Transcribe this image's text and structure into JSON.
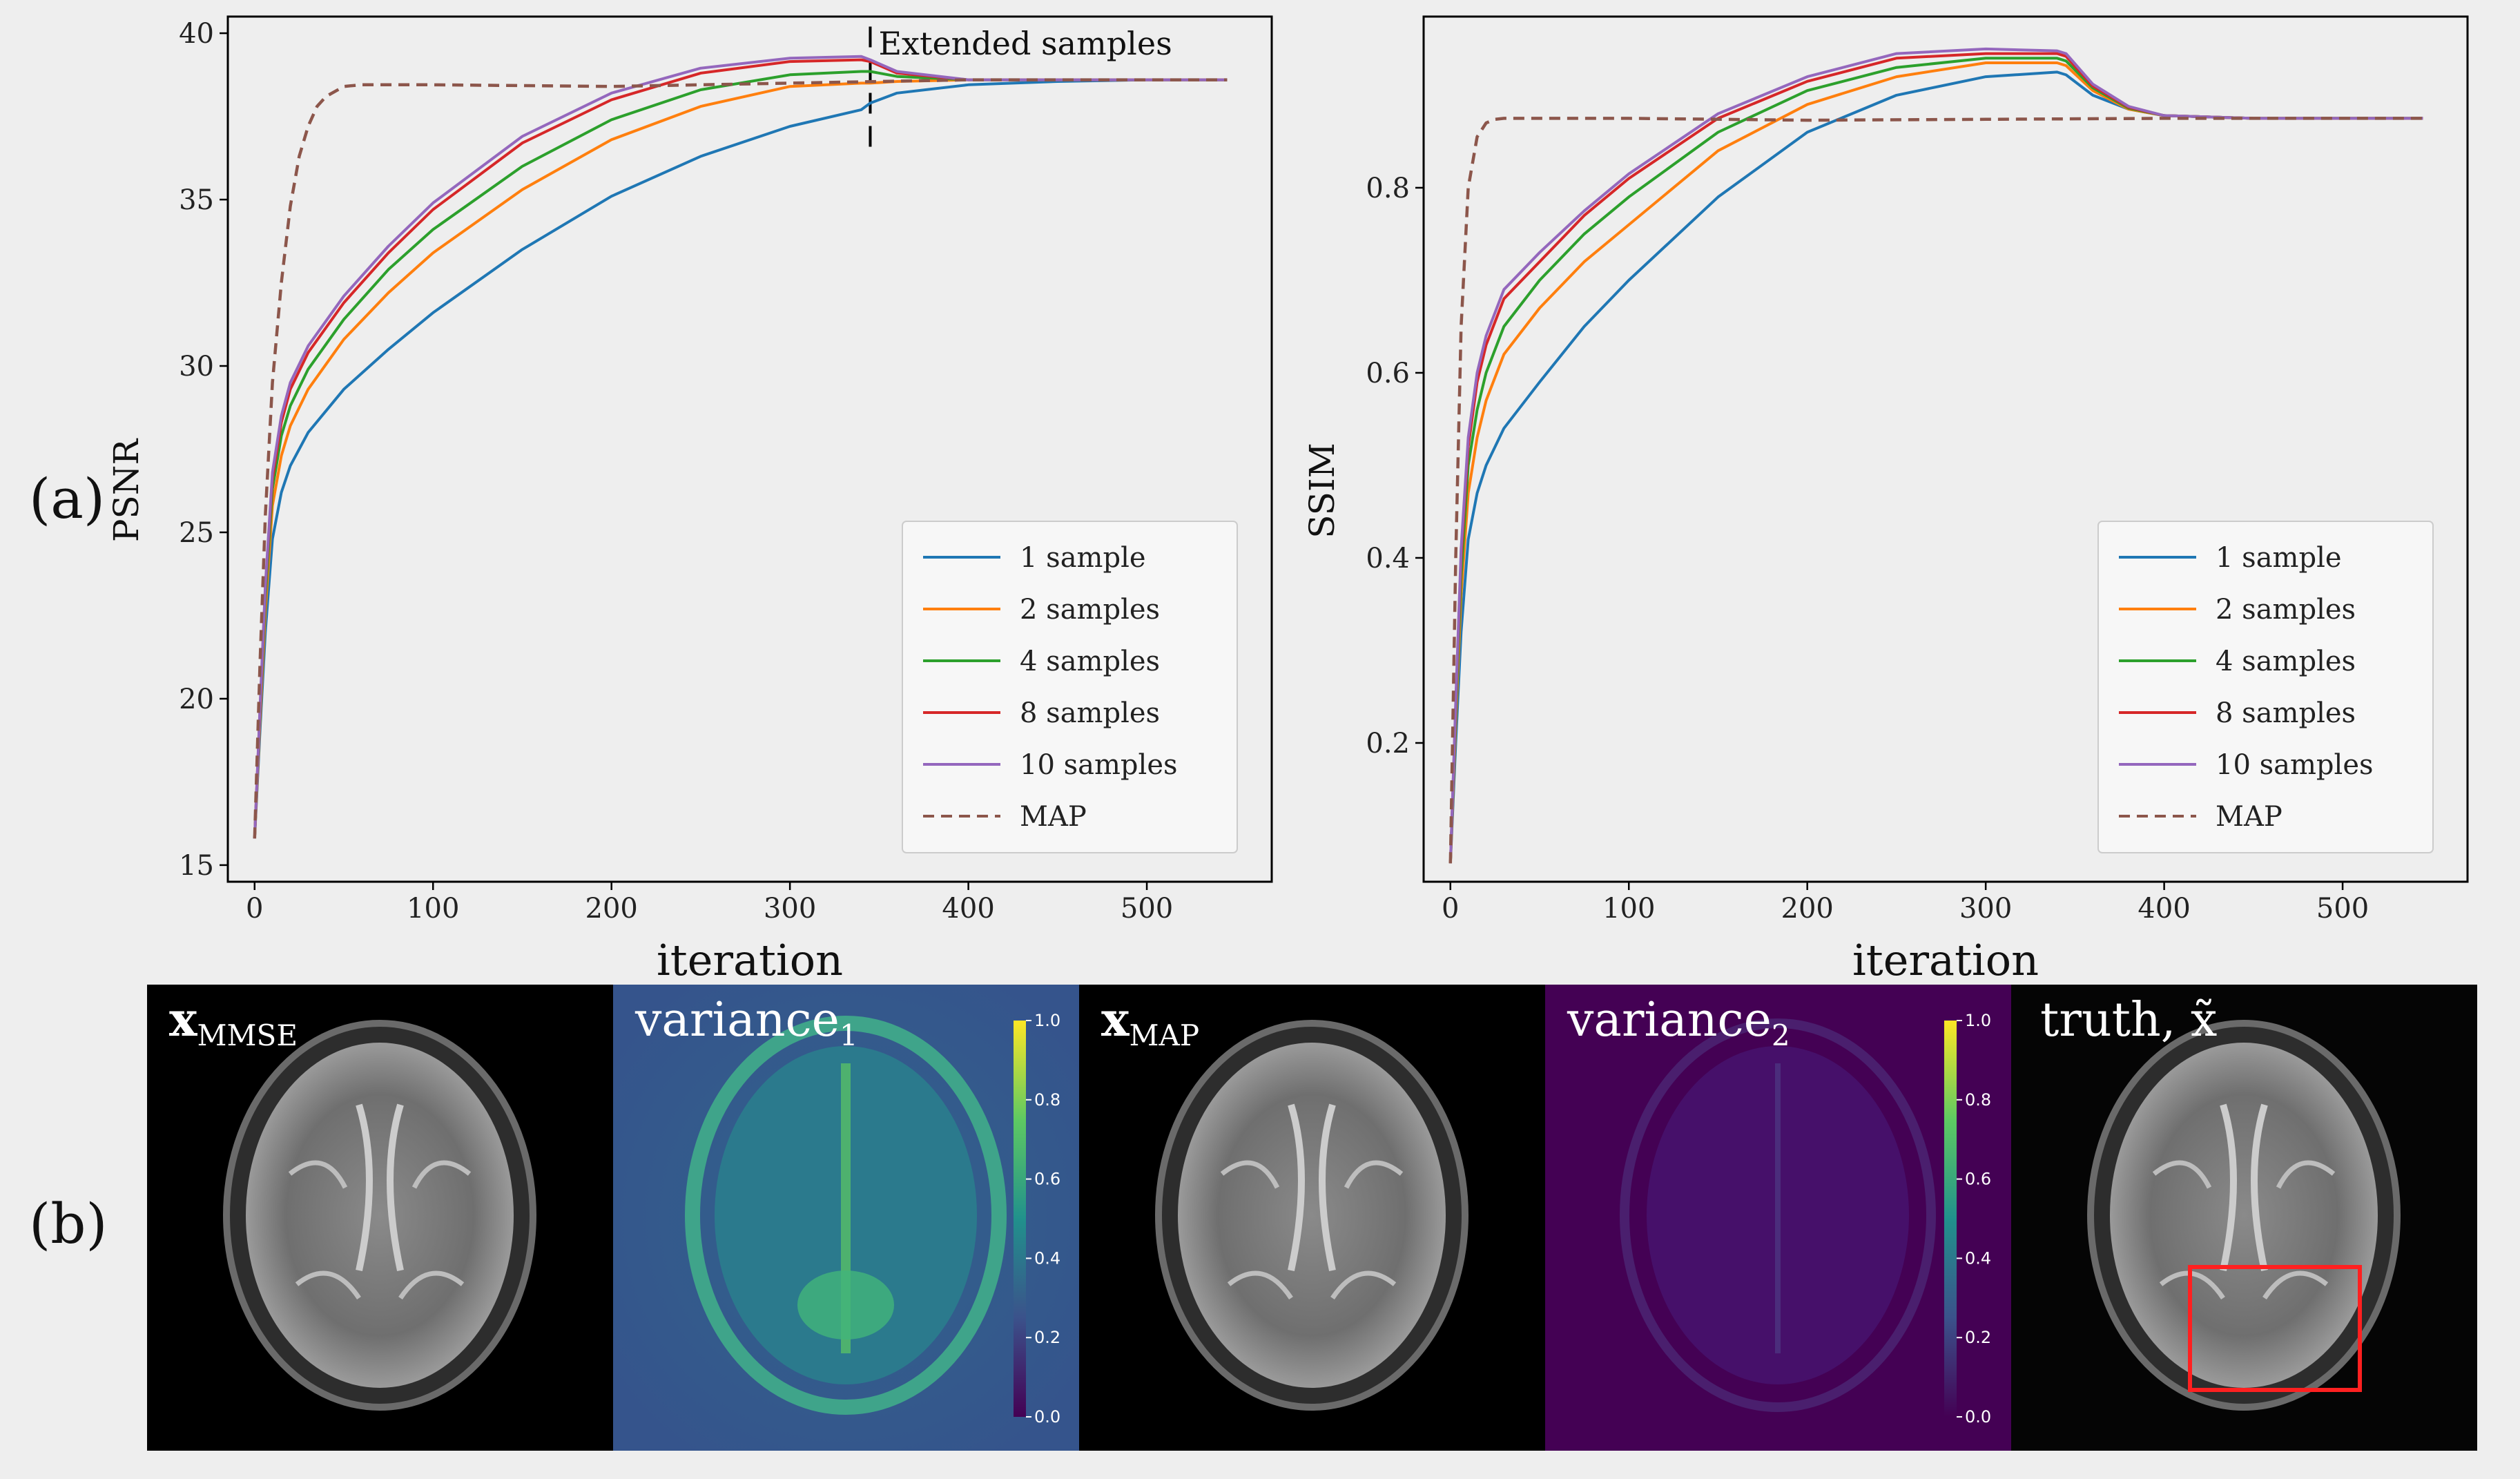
{
  "panels": {
    "a_label": "(a)",
    "b_label": "(b)"
  },
  "colors": {
    "series_1": "#1f77b4",
    "series_2": "#ff7f0e",
    "series_4": "#2ca02c",
    "series_8": "#d62728",
    "series_10": "#9467bd",
    "map": "#8c564b",
    "highlight_box": "#ff2020"
  },
  "chart_data": [
    {
      "type": "line",
      "xlabel": "iteration",
      "ylabel": "PSNR",
      "xlim": [
        -15,
        570
      ],
      "ylim": [
        14.5,
        40.5
      ],
      "xticks": [
        0,
        100,
        200,
        300,
        400,
        500
      ],
      "yticks": [
        15,
        20,
        25,
        30,
        35,
        40
      ],
      "grid": false,
      "legend_position": "lower-right",
      "annotation": {
        "text": "Extended samples",
        "x": 345
      },
      "series": [
        {
          "name": "1 sample",
          "style": "solid",
          "x": [
            0,
            3,
            6,
            10,
            15,
            20,
            30,
            50,
            75,
            100,
            150,
            200,
            250,
            300,
            340,
            345,
            360,
            400,
            450,
            500,
            545
          ],
          "y": [
            15.8,
            19.0,
            22.0,
            24.8,
            26.2,
            27.0,
            28.0,
            29.3,
            30.5,
            31.6,
            33.5,
            35.1,
            36.3,
            37.2,
            37.7,
            37.9,
            38.2,
            38.45,
            38.55,
            38.6,
            38.6
          ]
        },
        {
          "name": "2 samples",
          "style": "solid",
          "x": [
            0,
            3,
            6,
            10,
            15,
            20,
            30,
            50,
            75,
            100,
            150,
            200,
            250,
            300,
            340,
            345,
            360,
            400,
            450,
            500,
            545
          ],
          "y": [
            15.8,
            19.3,
            22.6,
            25.8,
            27.3,
            28.2,
            29.3,
            30.8,
            32.2,
            33.4,
            35.3,
            36.8,
            37.8,
            38.4,
            38.5,
            38.5,
            38.55,
            38.6,
            38.6,
            38.6,
            38.6
          ]
        },
        {
          "name": "4 samples",
          "style": "solid",
          "x": [
            0,
            3,
            6,
            10,
            15,
            20,
            30,
            50,
            75,
            100,
            150,
            200,
            250,
            300,
            340,
            345,
            360,
            400,
            450,
            500,
            545
          ],
          "y": [
            15.8,
            19.5,
            23.0,
            26.3,
            27.9,
            28.8,
            29.9,
            31.4,
            32.9,
            34.1,
            36.0,
            37.4,
            38.3,
            38.75,
            38.85,
            38.85,
            38.7,
            38.6,
            38.6,
            38.6,
            38.6
          ]
        },
        {
          "name": "8 samples",
          "style": "solid",
          "x": [
            0,
            3,
            6,
            10,
            15,
            20,
            30,
            50,
            75,
            100,
            150,
            200,
            250,
            300,
            340,
            345,
            360,
            400,
            450,
            500,
            545
          ],
          "y": [
            15.8,
            19.6,
            23.3,
            26.6,
            28.3,
            29.3,
            30.4,
            31.9,
            33.4,
            34.7,
            36.7,
            38.0,
            38.8,
            39.15,
            39.2,
            39.15,
            38.8,
            38.6,
            38.6,
            38.6,
            38.6
          ]
        },
        {
          "name": "10 samples",
          "style": "solid",
          "x": [
            0,
            3,
            6,
            10,
            15,
            20,
            30,
            50,
            75,
            100,
            150,
            200,
            250,
            300,
            340,
            345,
            360,
            400,
            450,
            500,
            545
          ],
          "y": [
            15.8,
            19.7,
            23.4,
            26.8,
            28.5,
            29.5,
            30.6,
            32.1,
            33.6,
            34.9,
            36.9,
            38.2,
            38.95,
            39.25,
            39.3,
            39.2,
            38.85,
            38.6,
            38.6,
            38.6,
            38.6
          ]
        },
        {
          "name": "MAP",
          "style": "dashed",
          "x": [
            0,
            3,
            6,
            10,
            15,
            20,
            25,
            30,
            35,
            40,
            50,
            60,
            100,
            200,
            300,
            400,
            545
          ],
          "y": [
            15.8,
            21.0,
            25.5,
            29.5,
            32.5,
            34.8,
            36.3,
            37.2,
            37.8,
            38.1,
            38.4,
            38.45,
            38.45,
            38.4,
            38.5,
            38.6,
            38.6
          ]
        }
      ]
    },
    {
      "type": "line",
      "xlabel": "iteration",
      "ylabel": "SSIM",
      "xlim": [
        -15,
        570
      ],
      "ylim": [
        0.05,
        0.985
      ],
      "xticks": [
        0,
        100,
        200,
        300,
        400,
        500
      ],
      "yticks": [
        0.2,
        0.4,
        0.6,
        0.8
      ],
      "grid": false,
      "legend_position": "lower-right",
      "series": [
        {
          "name": "1 sample",
          "style": "solid",
          "x": [
            0,
            3,
            6,
            10,
            15,
            20,
            30,
            50,
            75,
            100,
            150,
            200,
            250,
            300,
            340,
            345,
            360,
            380,
            400,
            450,
            500,
            545
          ],
          "y": [
            0.07,
            0.2,
            0.32,
            0.42,
            0.47,
            0.5,
            0.54,
            0.59,
            0.65,
            0.7,
            0.79,
            0.86,
            0.9,
            0.92,
            0.925,
            0.922,
            0.9,
            0.885,
            0.878,
            0.875,
            0.875,
            0.875
          ]
        },
        {
          "name": "2 samples",
          "style": "solid",
          "x": [
            0,
            3,
            6,
            10,
            15,
            20,
            30,
            50,
            75,
            100,
            150,
            200,
            250,
            300,
            340,
            345,
            360,
            380,
            400,
            450,
            500,
            545
          ],
          "y": [
            0.07,
            0.22,
            0.36,
            0.47,
            0.53,
            0.57,
            0.62,
            0.67,
            0.72,
            0.76,
            0.84,
            0.89,
            0.92,
            0.935,
            0.935,
            0.932,
            0.905,
            0.885,
            0.878,
            0.875,
            0.875,
            0.875
          ]
        },
        {
          "name": "4 samples",
          "style": "solid",
          "x": [
            0,
            3,
            6,
            10,
            15,
            20,
            30,
            50,
            75,
            100,
            150,
            200,
            250,
            300,
            340,
            345,
            360,
            380,
            400,
            450,
            500,
            545
          ],
          "y": [
            0.07,
            0.23,
            0.38,
            0.5,
            0.56,
            0.6,
            0.65,
            0.7,
            0.75,
            0.79,
            0.86,
            0.905,
            0.93,
            0.94,
            0.94,
            0.937,
            0.908,
            0.886,
            0.878,
            0.875,
            0.875,
            0.875
          ]
        },
        {
          "name": "8 samples",
          "style": "solid",
          "x": [
            0,
            3,
            6,
            10,
            15,
            20,
            30,
            50,
            75,
            100,
            150,
            200,
            250,
            300,
            340,
            345,
            360,
            380,
            400,
            450,
            500,
            545
          ],
          "y": [
            0.07,
            0.24,
            0.4,
            0.52,
            0.59,
            0.63,
            0.68,
            0.72,
            0.77,
            0.81,
            0.875,
            0.915,
            0.94,
            0.945,
            0.945,
            0.942,
            0.91,
            0.887,
            0.878,
            0.875,
            0.875,
            0.875
          ]
        },
        {
          "name": "10 samples",
          "style": "solid",
          "x": [
            0,
            3,
            6,
            10,
            15,
            20,
            30,
            50,
            75,
            100,
            150,
            200,
            250,
            300,
            340,
            345,
            360,
            380,
            400,
            450,
            500,
            545
          ],
          "y": [
            0.07,
            0.245,
            0.41,
            0.53,
            0.6,
            0.64,
            0.69,
            0.73,
            0.775,
            0.815,
            0.88,
            0.92,
            0.945,
            0.95,
            0.948,
            0.945,
            0.912,
            0.888,
            0.878,
            0.875,
            0.875,
            0.875
          ]
        },
        {
          "name": "MAP",
          "style": "dashed",
          "x": [
            0,
            3,
            6,
            10,
            15,
            20,
            25,
            30,
            40,
            60,
            100,
            200,
            300,
            400,
            545
          ],
          "y": [
            0.07,
            0.4,
            0.65,
            0.8,
            0.855,
            0.87,
            0.874,
            0.875,
            0.875,
            0.875,
            0.875,
            0.873,
            0.874,
            0.875,
            0.875
          ]
        }
      ]
    }
  ],
  "images": {
    "mmse": {
      "label": "x",
      "sub": "MMSE"
    },
    "var1": {
      "label": "variance",
      "sub": "1"
    },
    "map": {
      "label": "x",
      "sub": "MAP"
    },
    "var2": {
      "label": "variance",
      "sub": "2"
    },
    "truth": {
      "label": "truth, x̃"
    },
    "colorbar_ticks": [
      "0.0",
      "0.2",
      "0.4",
      "0.6",
      "0.8",
      "1.0"
    ],
    "colorbar_values": [
      0,
      0.2,
      0.4,
      0.6,
      0.8,
      1.0
    ]
  }
}
